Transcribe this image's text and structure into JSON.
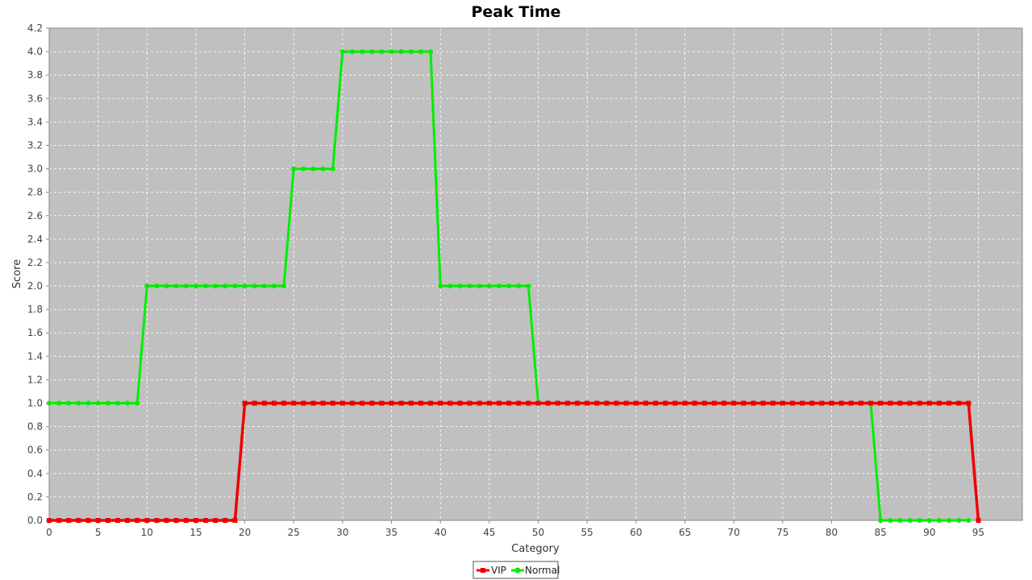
{
  "chart_data": {
    "type": "line",
    "title": "Peak Time",
    "xlabel": "Category",
    "ylabel": "Score",
    "xlim": [
      0,
      99.5
    ],
    "ylim": [
      0,
      4.2
    ],
    "x_ticks": [
      0,
      5,
      10,
      15,
      20,
      25,
      30,
      35,
      40,
      45,
      50,
      55,
      60,
      65,
      70,
      75,
      80,
      85,
      90,
      95
    ],
    "y_ticks": [
      0.0,
      0.2,
      0.4,
      0.6,
      0.8,
      1.0,
      1.2,
      1.4,
      1.6,
      1.8,
      2.0,
      2.2,
      2.4,
      2.6,
      2.8,
      3.0,
      3.2,
      3.4,
      3.6,
      3.8,
      4.0,
      4.2
    ],
    "y_tick_labels": [
      "0.0",
      "0.2",
      "0.4",
      "0.6",
      "0.8",
      "1.0",
      "1.2",
      "1.4",
      "1.6",
      "1.8",
      "2.0",
      "2.2",
      "2.4",
      "2.6",
      "2.8",
      "3.0",
      "3.2",
      "3.4",
      "3.6",
      "3.8",
      "4.0",
      "4.2"
    ],
    "grid": true,
    "legend_position": "bottom-center",
    "plot_background": "#c0c0c0",
    "series": [
      {
        "name": "VIP",
        "color": "#ee0000",
        "marker": "square",
        "segments": [
          {
            "from": 0,
            "to": 19,
            "value": 0
          },
          {
            "from": 20,
            "to": 94,
            "value": 1
          },
          {
            "from": 95,
            "to": 95,
            "value": 0
          }
        ]
      },
      {
        "name": "Normal",
        "color": "#00ee00",
        "marker": "circle",
        "segments": [
          {
            "from": 0,
            "to": 9,
            "value": 1
          },
          {
            "from": 10,
            "to": 24,
            "value": 2
          },
          {
            "from": 25,
            "to": 29,
            "value": 3
          },
          {
            "from": 30,
            "to": 39,
            "value": 4
          },
          {
            "from": 40,
            "to": 49,
            "value": 2
          },
          {
            "from": 50,
            "to": 84,
            "value": 1
          },
          {
            "from": 85,
            "to": 94,
            "value": 0
          }
        ]
      }
    ]
  }
}
